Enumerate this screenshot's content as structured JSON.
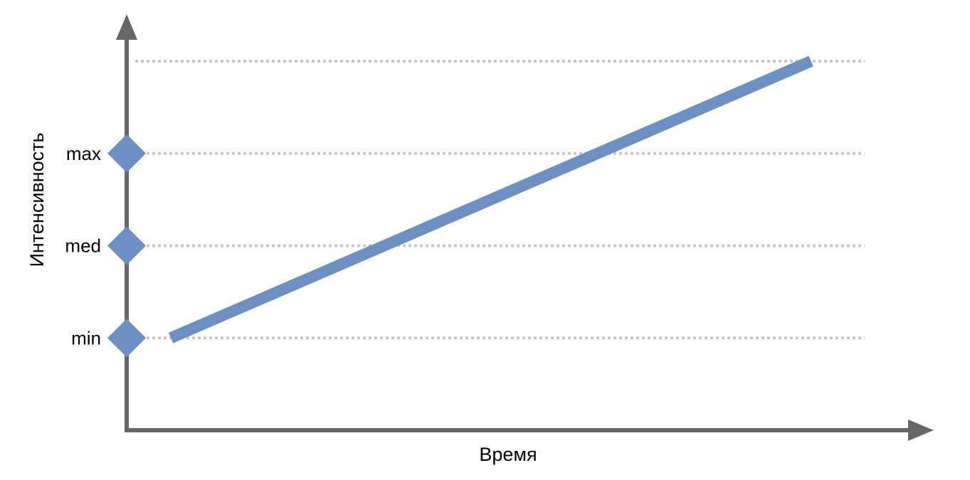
{
  "chart_data": {
    "type": "line",
    "xlabel": "Время",
    "ylabel": "Интенсивность",
    "y_levels": [
      {
        "label": "min",
        "value": 1
      },
      {
        "label": "med",
        "value": 2
      },
      {
        "label": "max",
        "value": 3
      }
    ],
    "gridline_values": [
      1,
      2,
      3,
      4
    ],
    "ylim": [
      0,
      4
    ],
    "xlim": [
      0,
      1
    ],
    "grid": "dotted horizontal",
    "series": [
      {
        "points": [
          {
            "x": 0.06,
            "y": 1
          },
          {
            "x": 0.93,
            "y": 4
          }
        ]
      }
    ],
    "colors": {
      "axis": "#666666",
      "line": "#6e8fc2",
      "marker": "#6e8fc2",
      "grid": "#c8c8c8"
    }
  }
}
